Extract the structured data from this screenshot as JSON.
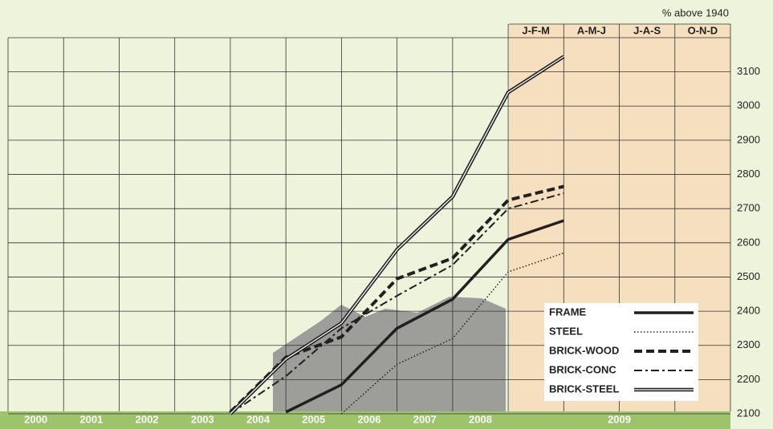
{
  "chart_data": {
    "type": "line",
    "y_label": "% above 1940",
    "categories": [
      "2000",
      "2001",
      "2002",
      "2003",
      "2004",
      "2005",
      "2006",
      "2007",
      "2008",
      "J-F-M",
      "A-M-J",
      "J-A-S",
      "O-N-D"
    ],
    "period_label": "2009",
    "series": [
      {
        "name": "FRAME",
        "color": "#231f20",
        "style": "solid",
        "values": [
          null,
          null,
          null,
          null,
          null,
          2105,
          2185,
          2350,
          2435,
          2610,
          2665,
          null,
          null
        ]
      },
      {
        "name": "STEEL",
        "color": "#231f20",
        "style": "dotted",
        "values": [
          null,
          null,
          null,
          null,
          null,
          null,
          2100,
          2245,
          2320,
          2515,
          2570,
          null,
          null
        ]
      },
      {
        "name": "BRICK-WOOD",
        "color": "#231f20",
        "style": "dashed",
        "values": [
          null,
          null,
          null,
          null,
          2105,
          2265,
          2325,
          2495,
          2555,
          2725,
          2765,
          null,
          null
        ]
      },
      {
        "name": "BRICK-CONC",
        "color": "#231f20",
        "style": "dashdot",
        "values": [
          null,
          null,
          null,
          null,
          2100,
          2210,
          2350,
          2445,
          2535,
          2700,
          2745,
          null,
          null
        ]
      },
      {
        "name": "BRICK-STEEL",
        "color": "#231f20",
        "style": "double",
        "values": [
          null,
          null,
          null,
          null,
          2100,
          2260,
          2365,
          2580,
          2735,
          3040,
          3145,
          null,
          null
        ]
      }
    ],
    "ylim": [
      2100,
      3200
    ],
    "yticks": [
      2100,
      2200,
      2300,
      2400,
      2500,
      2600,
      2700,
      2800,
      2900,
      3000,
      3100
    ],
    "grid": true
  }
}
